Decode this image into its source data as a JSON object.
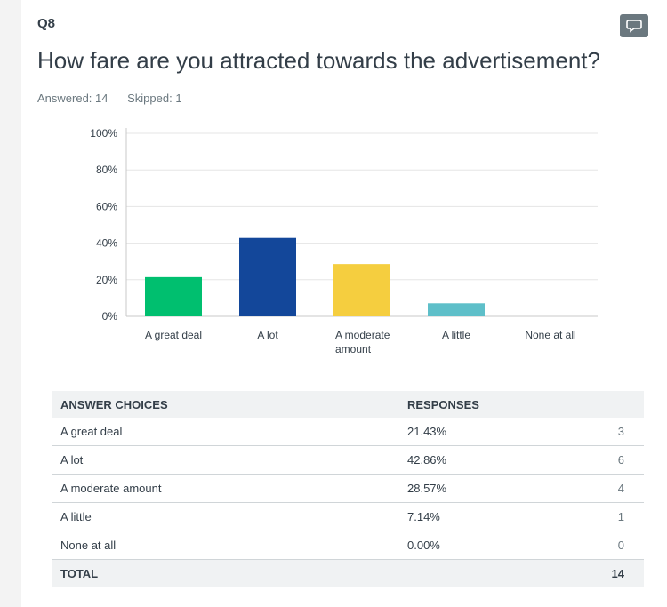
{
  "question": {
    "number": "Q8",
    "title": "How fare are you attracted towards the advertisement?",
    "answered": "Answered: 14",
    "skipped": "Skipped: 1"
  },
  "icons": {
    "comment": "speech-bubble-icon"
  },
  "colors": {
    "series": [
      "#00bf6f",
      "#13479a",
      "#f5ce3f",
      "#5ebfc9",
      "#b2b2b2"
    ]
  },
  "chart_data": {
    "type": "bar",
    "categories": [
      "A great deal",
      "A lot",
      "A moderate amount",
      "A little",
      "None at all"
    ],
    "category_lines": [
      [
        "A great deal"
      ],
      [
        "A lot"
      ],
      [
        "A moderate",
        "amount"
      ],
      [
        "A little"
      ],
      [
        "None at all"
      ]
    ],
    "values": [
      21.43,
      42.86,
      28.57,
      7.14,
      0.0
    ],
    "yticks": [
      "0%",
      "20%",
      "40%",
      "60%",
      "80%",
      "100%"
    ],
    "ylim": [
      0,
      100
    ],
    "grid": true
  },
  "table": {
    "headers": [
      "ANSWER CHOICES",
      "RESPONSES"
    ],
    "rows": [
      {
        "choice": "A great deal",
        "percent": "21.43%",
        "count": "3"
      },
      {
        "choice": "A lot",
        "percent": "42.86%",
        "count": "6"
      },
      {
        "choice": "A moderate amount",
        "percent": "28.57%",
        "count": "4"
      },
      {
        "choice": "A little",
        "percent": "7.14%",
        "count": "1"
      },
      {
        "choice": "None at all",
        "percent": "0.00%",
        "count": "0"
      }
    ],
    "total_label": "TOTAL",
    "total_count": "14"
  }
}
